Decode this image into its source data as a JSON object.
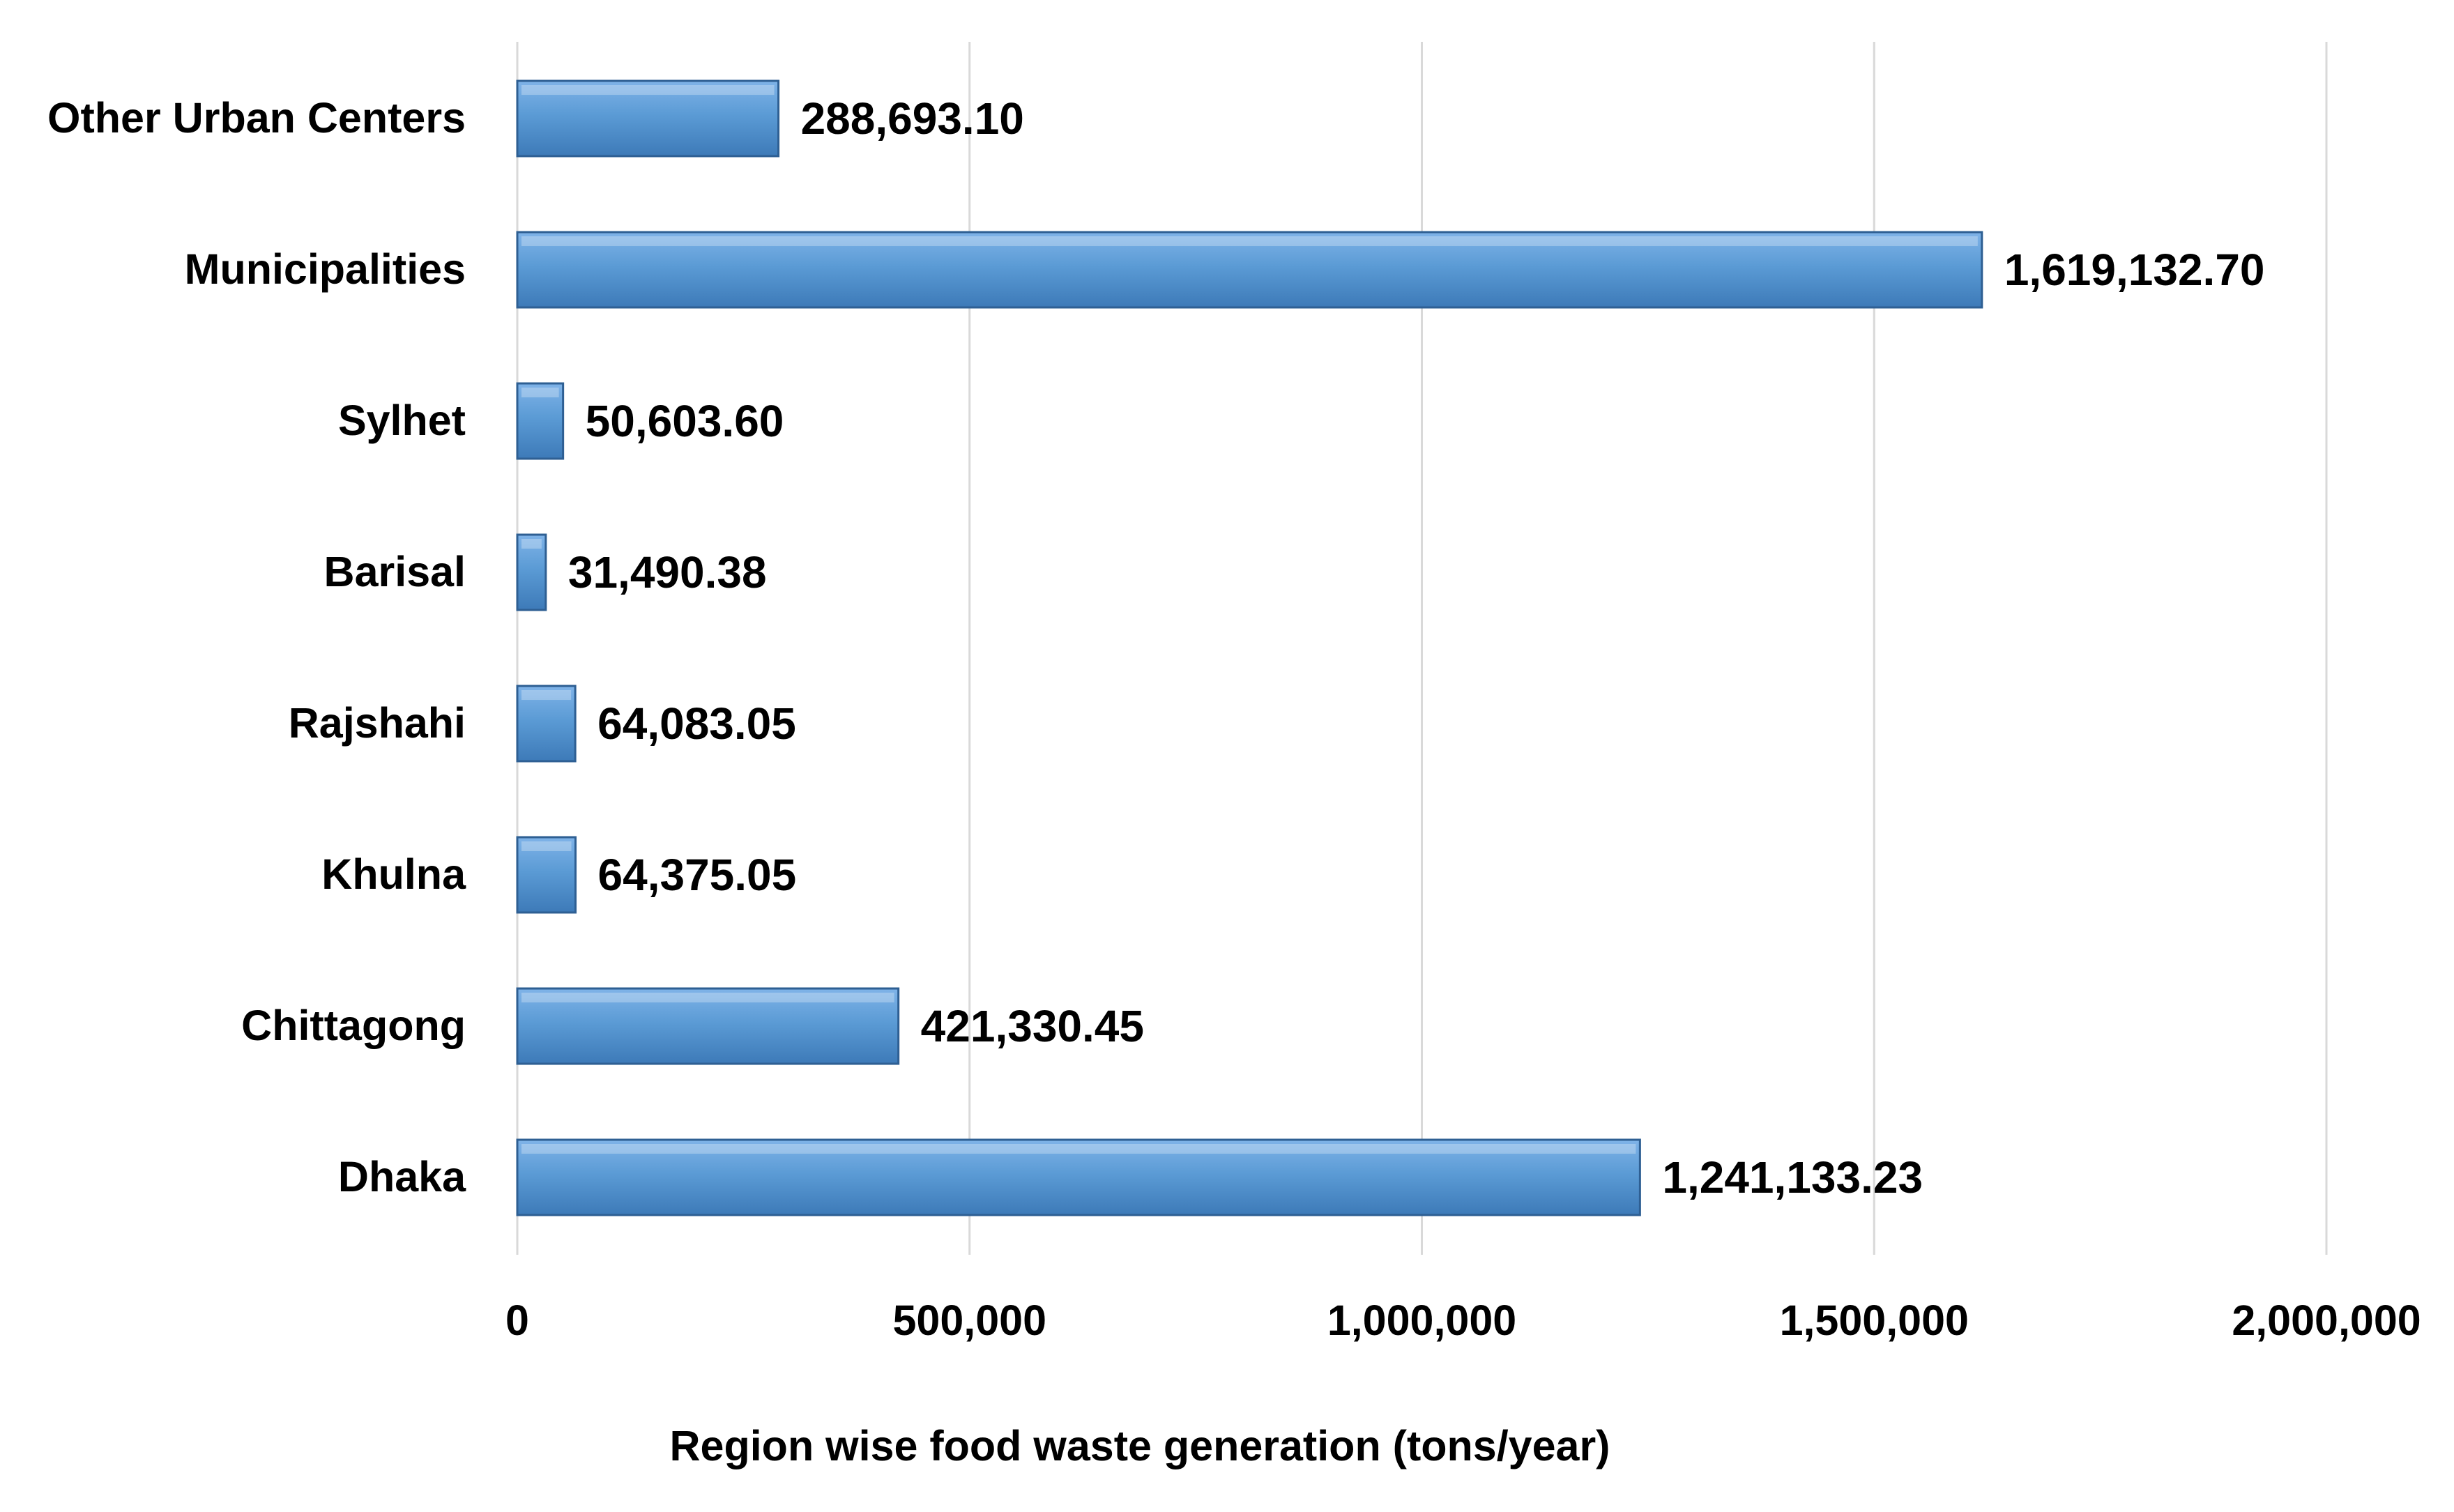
{
  "chart_data": {
    "type": "bar",
    "orientation": "horizontal",
    "title": "",
    "xlabel": "Region wise food waste generation (tons/year)",
    "ylabel": "",
    "xlim": [
      0,
      2000000
    ],
    "grid": true,
    "legend": "none",
    "categories": [
      "Other Urban Centers",
      "Municipalities",
      "Sylhet",
      "Barisal",
      "Rajshahi",
      "Khulna",
      "Chittagong",
      "Dhaka"
    ],
    "values": [
      288693.1,
      1619132.7,
      50603.6,
      31490.38,
      64083.05,
      64375.05,
      421330.45,
      1241133.23
    ],
    "value_labels": [
      "288,693.10",
      "1,619,132.70",
      "50,603.60",
      "31,490.38",
      "64,083.05",
      "64,375.05",
      "421,330.45",
      "1,241,133.23"
    ],
    "ticks": [
      0,
      500000,
      1000000,
      1500000,
      2000000
    ],
    "tick_labels": [
      "0",
      "500,000",
      "1,000,000",
      "1,500,000",
      "2,000,000"
    ],
    "colors": {
      "bar_top": "#7fb3e8",
      "bar_mid": "#5b9bd5",
      "bar_bottom": "#3d7ab8",
      "bar_edge": "#2e5f93",
      "grid": "#d9d9d9"
    }
  }
}
